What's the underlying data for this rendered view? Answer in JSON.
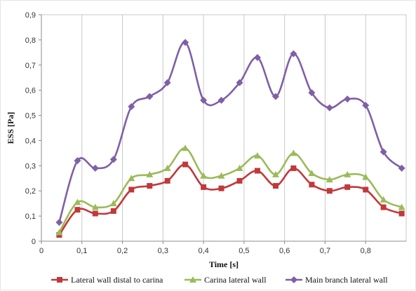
{
  "chart_data": {
    "type": "line",
    "title": "",
    "xlabel": "Time [s]",
    "ylabel": "ESS [Pa]",
    "xlim": [
      0,
      0.9
    ],
    "ylim": [
      0,
      0.9
    ],
    "xticks": [
      0,
      0.1,
      0.2,
      0.3,
      0.4,
      0.5,
      0.6,
      0.7,
      0.8
    ],
    "xtick_labels": [
      "0",
      "0,1",
      "0,2",
      "0,3",
      "0,4",
      "0,5",
      "0,6",
      "0,7",
      "0,8"
    ],
    "yticks": [
      0,
      0.1,
      0.2,
      0.3,
      0.4,
      0.5,
      0.6,
      0.7,
      0.8,
      0.9
    ],
    "ytick_labels": [
      "0",
      "0,1",
      "0,2",
      "0,3",
      "0,4",
      "0,5",
      "0,6",
      "0,7",
      "0,8",
      "0,9"
    ],
    "grid": "vertical",
    "legend_position": "bottom",
    "x": [
      0.044,
      0.089,
      0.133,
      0.178,
      0.222,
      0.267,
      0.311,
      0.355,
      0.4,
      0.444,
      0.489,
      0.533,
      0.578,
      0.622,
      0.667,
      0.711,
      0.755,
      0.8,
      0.844,
      0.889
    ],
    "series": [
      {
        "name": "Lateral wall distal to carina",
        "color": "#c0393b",
        "marker": "square",
        "values": [
          0.025,
          0.125,
          0.11,
          0.12,
          0.205,
          0.22,
          0.24,
          0.305,
          0.215,
          0.21,
          0.24,
          0.28,
          0.22,
          0.29,
          0.225,
          0.2,
          0.215,
          0.205,
          0.135,
          0.11
        ]
      },
      {
        "name": "Carina lateral wall",
        "color": "#9bbb59",
        "marker": "triangle",
        "values": [
          0.035,
          0.155,
          0.135,
          0.15,
          0.25,
          0.265,
          0.29,
          0.37,
          0.26,
          0.26,
          0.29,
          0.34,
          0.265,
          0.35,
          0.27,
          0.245,
          0.265,
          0.255,
          0.165,
          0.135
        ]
      },
      {
        "name": "Main branch lateral wall",
        "color": "#7f5fa7",
        "marker": "diamond",
        "values": [
          0.075,
          0.32,
          0.29,
          0.325,
          0.535,
          0.575,
          0.63,
          0.79,
          0.56,
          0.56,
          0.63,
          0.73,
          0.575,
          0.745,
          0.59,
          0.53,
          0.565,
          0.54,
          0.355,
          0.29
        ]
      }
    ]
  }
}
